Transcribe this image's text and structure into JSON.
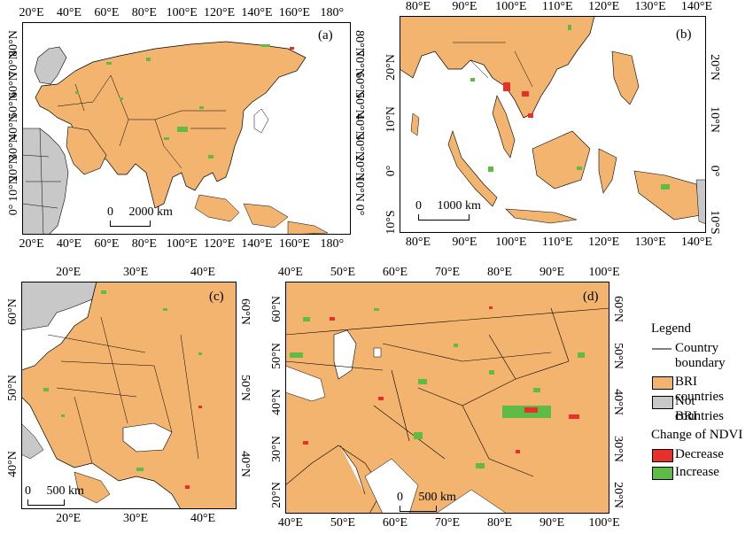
{
  "colors": {
    "bri": "#F2B46E",
    "not_bri": "#C8C8C8",
    "decrease": "#E8302A",
    "increase": "#5DBB46",
    "boundary": "#000000",
    "sea": "#FFFFFF"
  },
  "panels": {
    "a": {
      "label": "(a)",
      "lon": [
        15,
        190
      ],
      "lat": [
        -12,
        90
      ],
      "top_ticks": [
        [
          "20°E",
          20
        ],
        [
          "40°E",
          40
        ],
        [
          "60°E",
          60
        ],
        [
          "80°E",
          80
        ],
        [
          "100°E",
          100
        ],
        [
          "120°E",
          120
        ],
        [
          "140°E",
          140
        ],
        [
          "160°E",
          160
        ],
        [
          "180°",
          180
        ]
      ],
      "bottom_ticks": [
        [
          "20°E",
          20
        ],
        [
          "40°E",
          40
        ],
        [
          "60°E",
          60
        ],
        [
          "80°E",
          80
        ],
        [
          "100°E",
          100
        ],
        [
          "120°E",
          120
        ],
        [
          "140°E",
          140
        ],
        [
          "160°E",
          160
        ],
        [
          "180°",
          180
        ]
      ],
      "left_ticks": [
        [
          "0°",
          0
        ],
        [
          "10°N",
          10
        ],
        [
          "20°N",
          20
        ],
        [
          "30°N",
          30
        ],
        [
          "40°N",
          40
        ],
        [
          "50°N",
          50
        ],
        [
          "60°N",
          60
        ],
        [
          "70°N",
          70
        ],
        [
          "80°N",
          80
        ]
      ],
      "right_ticks": [
        [
          "0°",
          0
        ],
        [
          "10°N",
          10
        ],
        [
          "20°N",
          20
        ],
        [
          "30°N",
          30
        ],
        [
          "40°N",
          40
        ],
        [
          "50°N",
          50
        ],
        [
          "60°N",
          60
        ],
        [
          "70°N",
          70
        ],
        [
          "80°N",
          80
        ]
      ],
      "scale_text": "0     2000 km"
    },
    "b": {
      "label": "(b)",
      "lon": [
        76,
        142
      ],
      "lat": [
        -12,
        30
      ],
      "top_ticks": [
        [
          "80°E",
          80
        ],
        [
          "90°E",
          90
        ],
        [
          "100°E",
          100
        ],
        [
          "110°E",
          110
        ],
        [
          "120°E",
          120
        ],
        [
          "130°E",
          130
        ],
        [
          "140°E",
          140
        ]
      ],
      "bottom_ticks": [
        [
          "80°E",
          80
        ],
        [
          "90°E",
          90
        ],
        [
          "100°E",
          100
        ],
        [
          "110°E",
          110
        ],
        [
          "120°E",
          120
        ],
        [
          "130°E",
          130
        ],
        [
          "140°E",
          140
        ]
      ],
      "left_ticks": [
        [
          "10°S",
          -10
        ],
        [
          "0°",
          0
        ],
        [
          "10°N",
          10
        ],
        [
          "20°N",
          20
        ]
      ],
      "right_ticks": [
        [
          "10°S",
          -10
        ],
        [
          "0°",
          0
        ],
        [
          "10°N",
          10
        ],
        [
          "20°N",
          20
        ]
      ],
      "scale_text": "0     1000 km"
    },
    "c": {
      "label": "(c)",
      "lon": [
        13,
        45
      ],
      "lat": [
        34,
        64
      ],
      "top_ticks": [
        [
          "20°E",
          20
        ],
        [
          "30°E",
          30
        ],
        [
          "40°E",
          40
        ]
      ],
      "bottom_ticks": [
        [
          "20°E",
          20
        ],
        [
          "30°E",
          30
        ],
        [
          "40°E",
          40
        ]
      ],
      "left_ticks": [
        [
          "40°N",
          40
        ],
        [
          "50°N",
          50
        ],
        [
          "60°N",
          60
        ]
      ],
      "right_ticks": [
        [
          "40°N",
          40
        ],
        [
          "50°N",
          50
        ],
        [
          "60°N",
          60
        ]
      ],
      "scale_text": "0     500 km"
    },
    "d": {
      "label": "(d)",
      "lon": [
        39,
        101
      ],
      "lat": [
        16,
        66
      ],
      "top_ticks": [
        [
          "40°E",
          40
        ],
        [
          "50°E",
          50
        ],
        [
          "60°E",
          60
        ],
        [
          "70°E",
          70
        ],
        [
          "80°E",
          80
        ],
        [
          "90°E",
          90
        ],
        [
          "100°E",
          100
        ]
      ],
      "bottom_ticks": [
        [
          "40°E",
          40
        ],
        [
          "50°E",
          50
        ],
        [
          "60°E",
          60
        ],
        [
          "70°E",
          70
        ],
        [
          "80°E",
          80
        ],
        [
          "90°E",
          90
        ],
        [
          "100°E",
          100
        ]
      ],
      "left_ticks": [
        [
          "20°N",
          20
        ],
        [
          "30°N",
          30
        ],
        [
          "40°N",
          40
        ],
        [
          "50°N",
          50
        ],
        [
          "60°N",
          60
        ]
      ],
      "right_ticks": [
        [
          "20°N",
          20
        ],
        [
          "30°N",
          30
        ],
        [
          "40°N",
          40
        ],
        [
          "50°N",
          50
        ],
        [
          "60°N",
          60
        ]
      ],
      "scale_text": "0     500 km"
    }
  },
  "legend": {
    "title": "Legend",
    "boundary_line1": "Country",
    "boundary_line2": "boundary",
    "bri": "BRI countries",
    "not_bri_line1": "Not BRI",
    "not_bri_line2": "countries",
    "ndvi_title": "Change of NDVI",
    "decrease": "Decrease",
    "increase": "Increase"
  }
}
